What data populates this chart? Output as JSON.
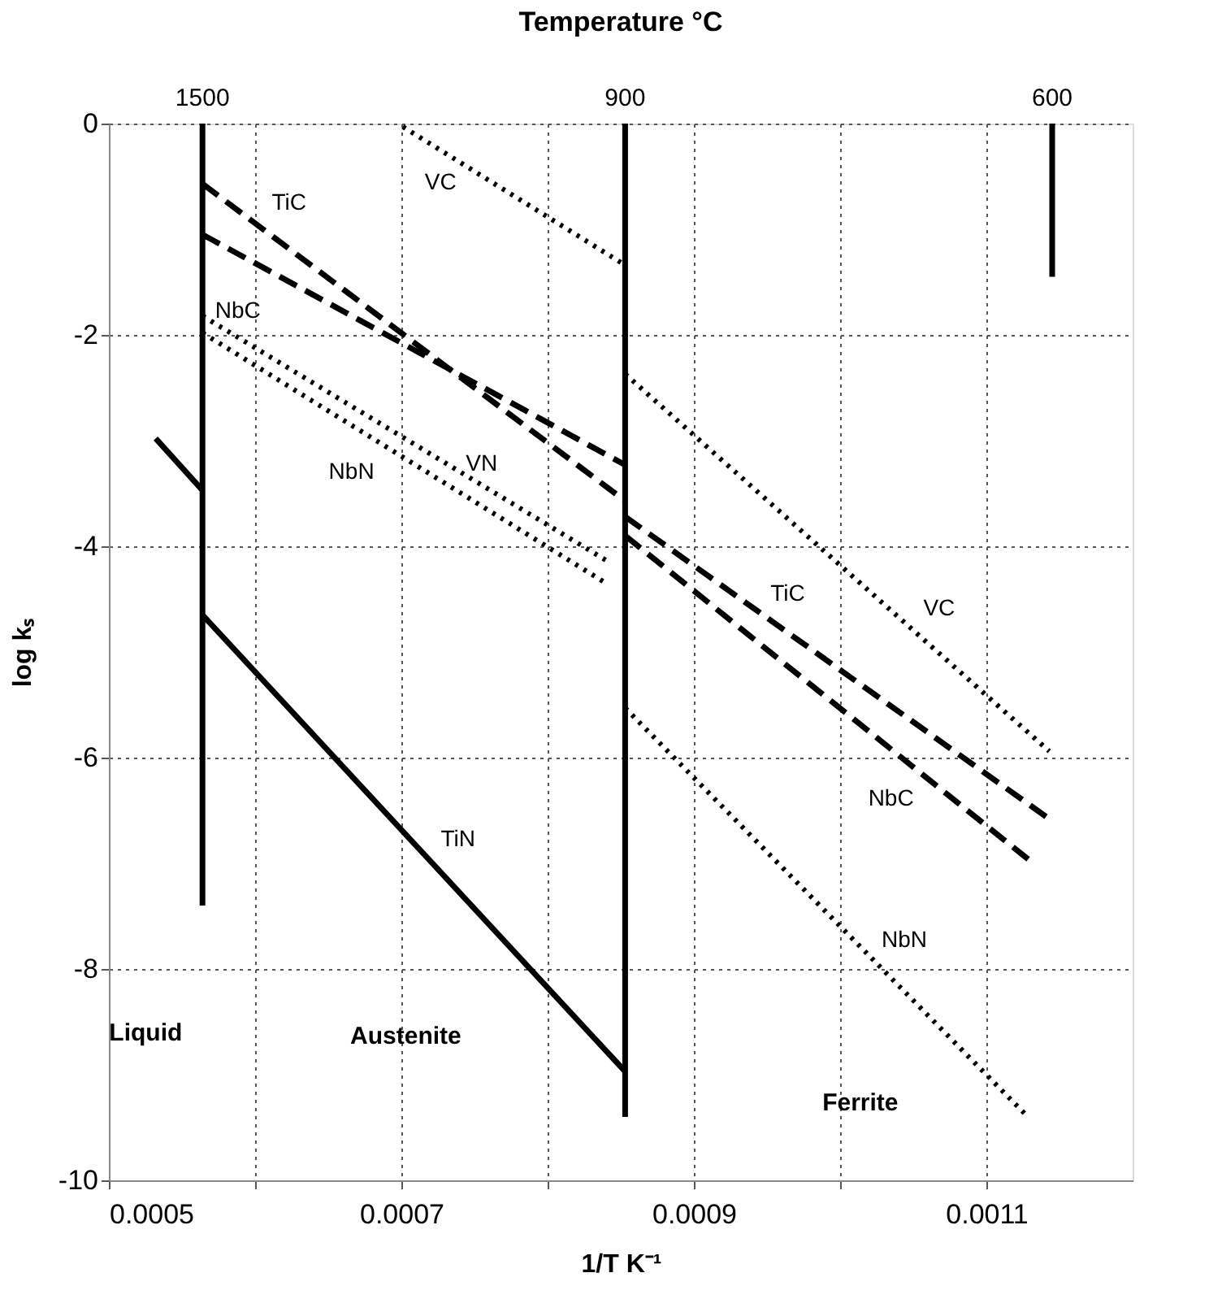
{
  "chart_data": {
    "type": "line",
    "title": "Temperature    °C",
    "xlabel": "1/T    K⁻¹",
    "ylabel": "log   kₛ",
    "xlim": [
      0.0005,
      0.0012
    ],
    "ylim": [
      -10,
      0
    ],
    "xticks": [
      {
        "value": 0.0005,
        "label": "0.0005"
      },
      {
        "value": 0.0006,
        "label": null
      },
      {
        "value": 0.0007,
        "label": "0.0007"
      },
      {
        "value": 0.0008,
        "label": null
      },
      {
        "value": 0.0009,
        "label": "0.0009"
      },
      {
        "value": 0.001,
        "label": null
      },
      {
        "value": 0.0011,
        "label": "0.0011"
      }
    ],
    "yticks": [
      -10,
      -8,
      -6,
      -4,
      -2,
      0
    ],
    "grid": true,
    "marker": "none",
    "series": [
      {
        "color": "#000000",
        "line_style": "solid",
        "x": [
          0.000564,
          0.000564
        ],
        "values": [
          0,
          -7.4
        ]
      },
      {
        "color": "#000000",
        "line_style": "solid",
        "x": [
          0.000853,
          0.000853
        ],
        "values": [
          0,
          -9.4
        ]
      },
      {
        "color": "#000000",
        "line_style": "solid",
        "x": [
          0.001145,
          0.001145
        ],
        "values": [
          0,
          -1.45
        ]
      },
      {
        "color": "#000000",
        "line_style": "dashed",
        "x": [
          0.000564,
          0.000853
        ],
        "values": [
          -0.57,
          -3.57
        ]
      },
      {
        "color": "#000000",
        "line_style": "dashed",
        "x": [
          0.000853,
          0.001143
        ],
        "values": [
          -3.72,
          -6.58
        ]
      },
      {
        "color": "#000000",
        "line_style": "dashed",
        "x": [
          0.000564,
          0.000853
        ],
        "values": [
          -1.05,
          -3.23
        ]
      },
      {
        "color": "#000000",
        "line_style": "dashed",
        "x": [
          0.000853,
          0.001132
        ],
        "values": [
          -3.9,
          -7.0
        ]
      },
      {
        "color": "#000000",
        "line_style": "dotted",
        "x": [
          0.000701,
          0.000853
        ],
        "values": [
          -0.03,
          -1.34
        ]
      },
      {
        "color": "#000000",
        "line_style": "dotted",
        "x": [
          0.000853,
          0.001143
        ],
        "values": [
          -2.37,
          -5.94
        ]
      },
      {
        "color": "#000000",
        "line_style": "dotted",
        "x": [
          0.000564,
          0.00084
        ],
        "values": [
          -1.98,
          -4.35
        ]
      },
      {
        "color": "#000000",
        "line_style": "dotted",
        "x": [
          0.000853,
          0.001127
        ],
        "values": [
          -5.53,
          -9.38
        ]
      },
      {
        "color": "#000000",
        "line_style": "dotted",
        "x": [
          0.000564,
          0.000842
        ],
        "values": [
          -1.82,
          -4.15
        ]
      },
      {
        "color": "#000000",
        "line_style": "solid",
        "x": [
          0.000532,
          0.000564
        ],
        "values": [
          -2.98,
          -3.47
        ]
      },
      {
        "color": "#000000",
        "line_style": "solid",
        "x": [
          0.000564,
          0.000853
        ],
        "values": [
          -4.65,
          -8.97
        ]
      }
    ],
    "annotations": [
      "TiC",
      "VC",
      "NbC",
      "NbN",
      "VN",
      "TiC",
      "VC",
      "NbC",
      "TiN",
      "NbN",
      "Liquid",
      "Austenite",
      "Ferrite",
      {
        "text": "1500",
        "x": 0.000564,
        "y": 0
      },
      {
        "text": "900",
        "x": 0.000853,
        "y": 0
      },
      {
        "text": "600",
        "x": 0.001145,
        "y": 0
      }
    ]
  }
}
